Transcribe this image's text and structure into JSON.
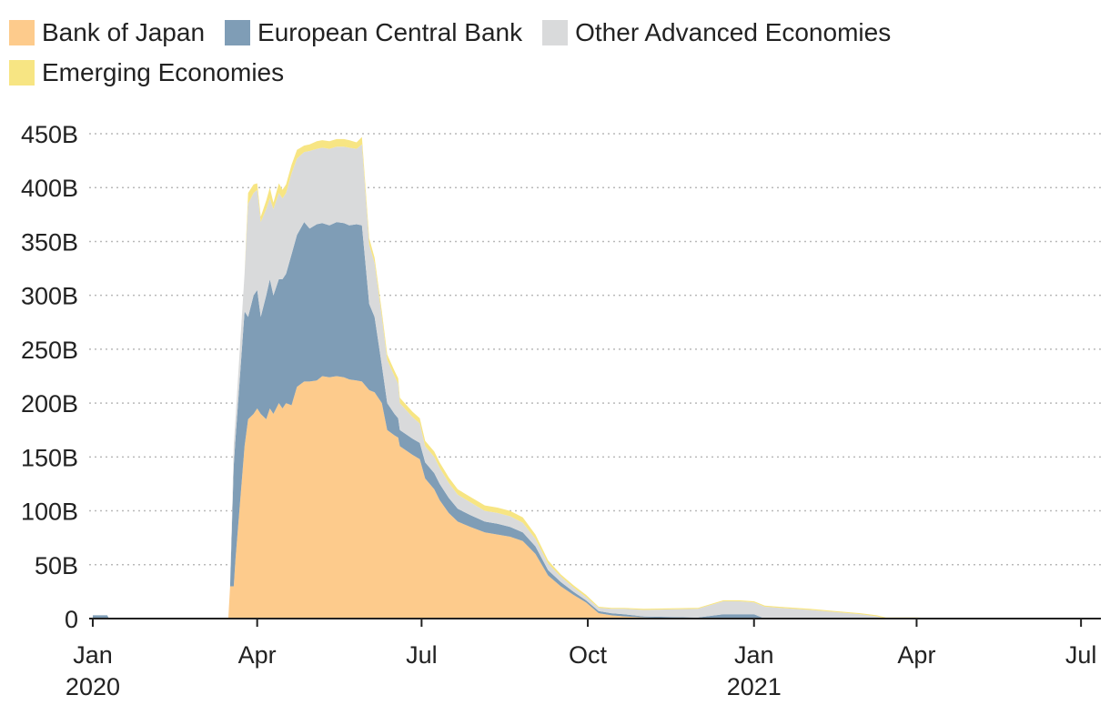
{
  "legend": [
    {
      "label": "Bank of Japan",
      "color": "#fdcb8c"
    },
    {
      "label": "European Central Bank",
      "color": "#7f9db6"
    },
    {
      "label": "Other Advanced Economies",
      "color": "#d9dadb"
    },
    {
      "label": "Emerging Economies",
      "color": "#f7e583"
    }
  ],
  "chart_data": {
    "type": "area",
    "stacked": true,
    "ylim": [
      0,
      450
    ],
    "y_unit": "B",
    "y_ticks": [
      "0",
      "50B",
      "100B",
      "150B",
      "200B",
      "250B",
      "300B",
      "350B",
      "400B",
      "450B"
    ],
    "y_tick_values": [
      0,
      50,
      100,
      150,
      200,
      250,
      300,
      350,
      400,
      450
    ],
    "grid": "horizontal dotted",
    "legend_position": "top",
    "x_ticks": [
      {
        "date": "2020-01-01",
        "label": "Jan",
        "sublabel": "2020"
      },
      {
        "date": "2020-04-01",
        "label": "Apr",
        "sublabel": ""
      },
      {
        "date": "2020-07-01",
        "label": "Jul",
        "sublabel": ""
      },
      {
        "date": "2020-10-01",
        "label": "Oct",
        "sublabel": ""
      },
      {
        "date": "2021-01-01",
        "label": "Jan",
        "sublabel": "2021"
      },
      {
        "date": "2021-04-01",
        "label": "Apr",
        "sublabel": ""
      },
      {
        "date": "2021-07-01",
        "label": "Jul",
        "sublabel": ""
      }
    ],
    "xlim": [
      "2019-12-30",
      "2021-07-11"
    ],
    "x": [
      "2020-01-01",
      "2020-01-09",
      "2020-01-10",
      "2020-03-16",
      "2020-03-17",
      "2020-03-19",
      "2020-03-20",
      "2020-03-25",
      "2020-03-27",
      "2020-03-30",
      "2020-04-01",
      "2020-04-03",
      "2020-04-06",
      "2020-04-08",
      "2020-04-10",
      "2020-04-13",
      "2020-04-15",
      "2020-04-17",
      "2020-04-20",
      "2020-04-23",
      "2020-04-27",
      "2020-04-30",
      "2020-05-04",
      "2020-05-07",
      "2020-05-11",
      "2020-05-15",
      "2020-05-19",
      "2020-05-22",
      "2020-05-26",
      "2020-05-29",
      "2020-06-02",
      "2020-06-05",
      "2020-06-09",
      "2020-06-12",
      "2020-06-16",
      "2020-06-18",
      "2020-06-19",
      "2020-06-26",
      "2020-06-30",
      "2020-07-03",
      "2020-07-08",
      "2020-07-11",
      "2020-07-16",
      "2020-07-21",
      "2020-07-28",
      "2020-08-05",
      "2020-08-12",
      "2020-08-19",
      "2020-08-26",
      "2020-09-02",
      "2020-09-09",
      "2020-09-16",
      "2020-09-23",
      "2020-09-30",
      "2020-10-07",
      "2020-10-14",
      "2020-10-21",
      "2020-11-01",
      "2020-12-01",
      "2020-12-15",
      "2020-12-22",
      "2020-12-24",
      "2021-01-01",
      "2021-01-07",
      "2021-01-15",
      "2021-02-01",
      "2021-02-15",
      "2021-03-01",
      "2021-03-10",
      "2021-03-15",
      "2021-04-01",
      "2021-04-15"
    ],
    "series": [
      {
        "name": "Bank of Japan",
        "color": "#fdcb8c",
        "values": [
          0,
          0,
          0,
          0,
          30,
          30,
          55,
          160,
          185,
          190,
          195,
          190,
          185,
          195,
          190,
          200,
          195,
          200,
          198,
          215,
          220,
          220,
          221,
          225,
          224,
          225,
          224,
          222,
          221,
          220,
          212,
          210,
          200,
          175,
          170,
          168,
          160,
          152,
          148,
          130,
          120,
          110,
          98,
          90,
          85,
          80,
          78,
          76,
          72,
          60,
          40,
          30,
          22,
          15,
          5,
          3,
          2,
          1,
          0,
          0,
          0,
          0,
          0,
          0,
          0,
          0,
          0,
          0,
          0,
          0,
          0,
          0
        ]
      },
      {
        "name": "European Central Bank",
        "color": "#7f9db6",
        "values": [
          3,
          3,
          0,
          0,
          0,
          112,
          112,
          125,
          95,
          110,
          110,
          90,
          115,
          120,
          110,
          115,
          120,
          120,
          140,
          141,
          148,
          142,
          145,
          142,
          141,
          143,
          143,
          143,
          145,
          145,
          80,
          70,
          35,
          25,
          20,
          18,
          15,
          15,
          15,
          15,
          15,
          15,
          14,
          12,
          11,
          10,
          10,
          9,
          8,
          7,
          5,
          4,
          3,
          2,
          2,
          2,
          2,
          1,
          1,
          4,
          4,
          4,
          4,
          0,
          0,
          0,
          0,
          0,
          0,
          0,
          0,
          0
        ]
      },
      {
        "name": "Other Advanced Economies",
        "color": "#d9dadb",
        "values": [
          0,
          0,
          0,
          0,
          0,
          19,
          19,
          35,
          105,
          95,
          93,
          88,
          80,
          75,
          80,
          80,
          75,
          75,
          75,
          71,
          65,
          72,
          70,
          70,
          71,
          70,
          71,
          72,
          70,
          75,
          55,
          50,
          45,
          40,
          35,
          32,
          25,
          20,
          18,
          15,
          15,
          15,
          14,
          13,
          12,
          10,
          10,
          10,
          9,
          7,
          6,
          5,
          4,
          3,
          3,
          4,
          5,
          6,
          8,
          12,
          12,
          12,
          11,
          11,
          10,
          8,
          6,
          4,
          2,
          0,
          0,
          0
        ]
      },
      {
        "name": "Emerging Economies",
        "color": "#f7e583",
        "values": [
          0,
          0,
          0,
          0,
          0,
          0,
          0,
          0,
          10,
          8,
          6,
          5,
          8,
          10,
          6,
          9,
          8,
          8,
          8,
          8,
          6,
          6,
          7,
          7,
          7,
          7,
          7,
          7,
          6,
          7,
          6,
          5,
          5,
          5,
          5,
          5,
          5,
          5,
          5,
          5,
          5,
          5,
          5,
          5,
          5,
          5,
          5,
          5,
          5,
          4,
          3,
          2,
          2,
          2,
          1,
          1,
          1,
          1,
          1,
          1,
          1,
          1,
          1,
          1,
          1,
          1,
          1,
          1,
          1,
          1,
          1,
          0
        ]
      }
    ]
  }
}
